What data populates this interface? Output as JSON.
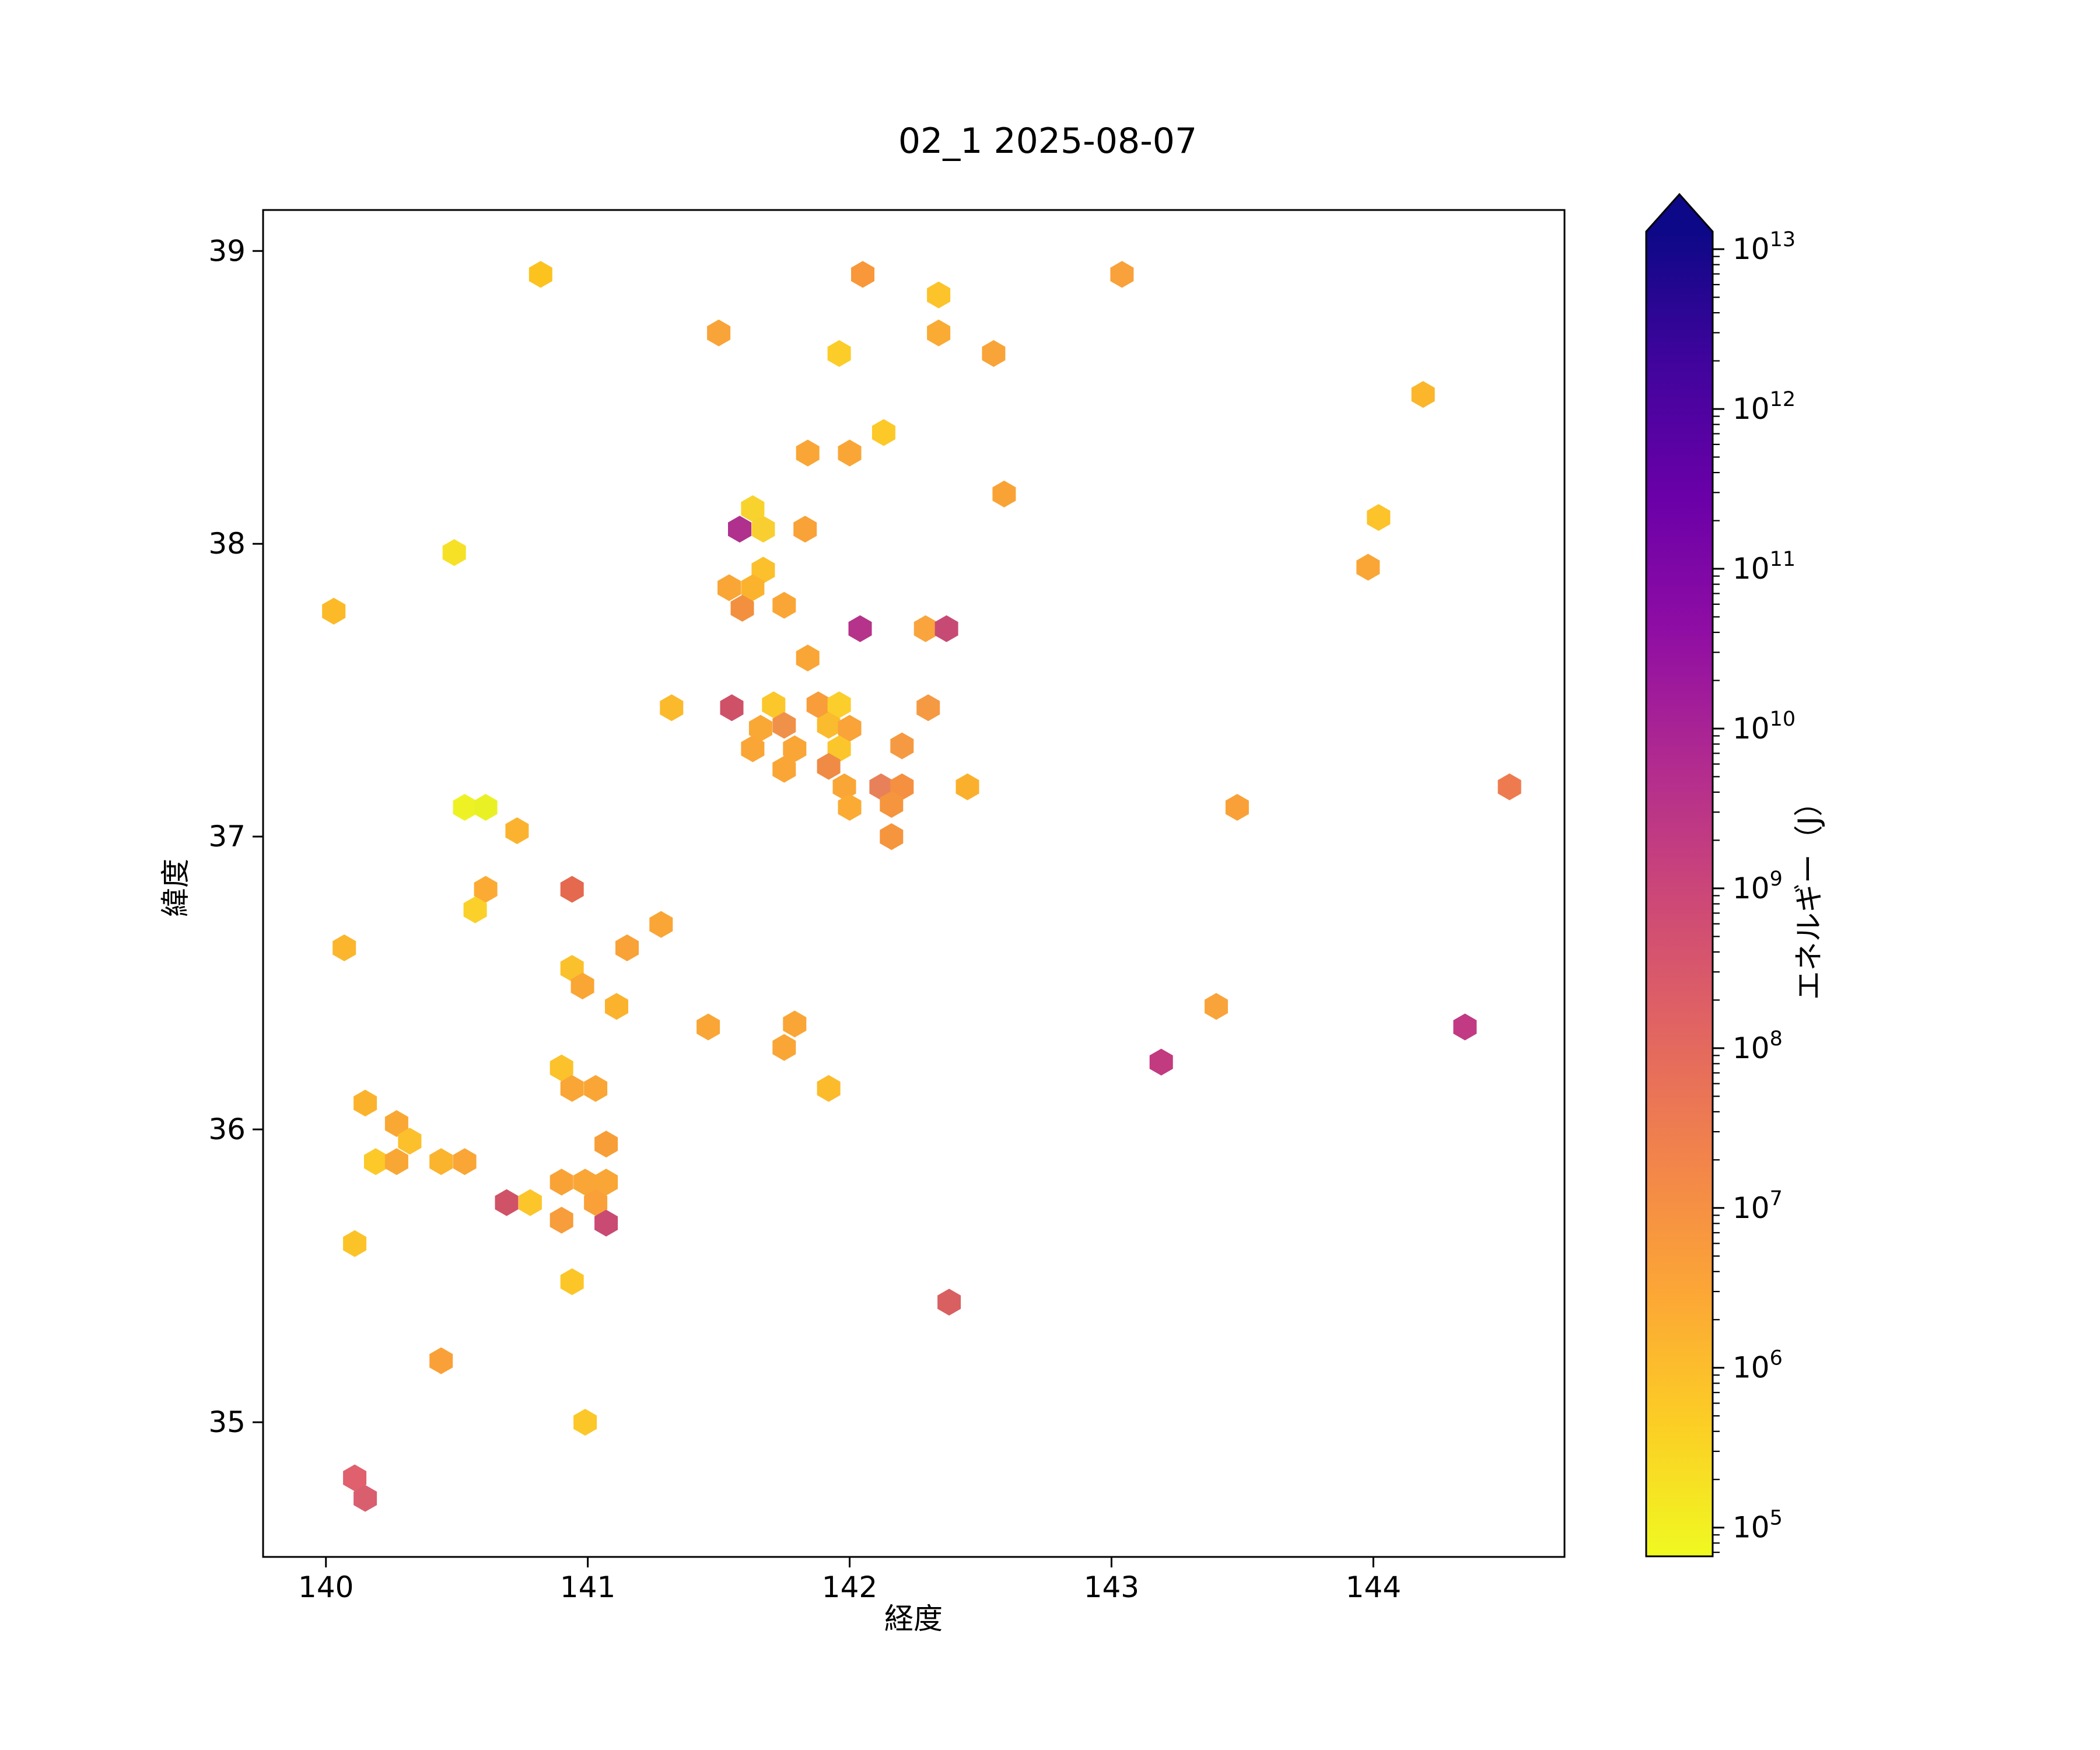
{
  "title": "02_1 2025-08-07",
  "chart_data": {
    "type": "scatter",
    "marker": "hexagon",
    "title": "02_1 2025-08-07",
    "xlabel": "経度",
    "ylabel": "緯度",
    "xlim": [
      139.76,
      144.73
    ],
    "ylim": [
      34.54,
      39.14
    ],
    "xticks": [
      140,
      141,
      142,
      143,
      144
    ],
    "yticks": [
      35,
      36,
      37,
      38,
      39
    ],
    "grid": false,
    "legend_position": "right-colorbar",
    "colorbar": {
      "label": "エネルギー（J）",
      "scale": "log",
      "tick_labels": [
        "10^13",
        "10^12",
        "10^11",
        "10^10",
        "10^9",
        "10^8",
        "10^7",
        "10^6",
        "10^5"
      ],
      "tick_exponents": [
        13,
        12,
        11,
        10,
        9,
        8,
        7,
        6,
        5
      ],
      "edge_exponents": [
        4.82,
        13.11
      ],
      "extend": "max",
      "colormap": "plasma_r",
      "gradient_stops_top_to_bottom": [
        "#0d0887",
        "#41049d",
        "#6a00a8",
        "#8f0da4",
        "#b12a90",
        "#cc4778",
        "#e16462",
        "#f2844b",
        "#fca636",
        "#fcce25",
        "#f0f921"
      ],
      "over_color": "#0d0887"
    },
    "point_format": [
      "lon",
      "lat",
      "color",
      "energy_J_estimate"
    ],
    "points": [
      [
        140.82,
        38.92,
        "#fcc21e",
        600000
      ],
      [
        140.49,
        37.97,
        "#f6e126",
        200000
      ],
      [
        140.03,
        37.77,
        "#fcba28",
        900000
      ],
      [
        142.05,
        38.92,
        "#f8983a",
        4000000
      ],
      [
        142.34,
        38.85,
        "#fcc32a",
        600000
      ],
      [
        141.5,
        38.72,
        "#f9a438",
        2500000
      ],
      [
        142.34,
        38.72,
        "#faab34",
        1600000
      ],
      [
        141.96,
        38.65,
        "#fccd28",
        400000
      ],
      [
        142.55,
        38.65,
        "#f9a438",
        2500000
      ],
      [
        143.04,
        38.92,
        "#f9a13a",
        3000000
      ],
      [
        142.13,
        38.38,
        "#fcc928",
        500000
      ],
      [
        141.84,
        38.31,
        "#f9a636",
        2500000
      ],
      [
        142.0,
        38.31,
        "#f9a636",
        2500000
      ],
      [
        142.59,
        38.17,
        "#f9a337",
        3000000
      ],
      [
        141.63,
        38.12,
        "#f8d32e",
        350000
      ],
      [
        141.58,
        38.05,
        "#b0308e",
        5000000000
      ],
      [
        141.67,
        38.05,
        "#f9ce30",
        400000
      ],
      [
        141.83,
        38.05,
        "#f9a237",
        3000000
      ],
      [
        141.67,
        37.91,
        "#fbc02c",
        700000
      ],
      [
        141.54,
        37.85,
        "#f9a636",
        2500000
      ],
      [
        141.63,
        37.85,
        "#fbb32e",
        1200000
      ],
      [
        141.59,
        37.78,
        "#f2903f",
        8000000
      ],
      [
        141.75,
        37.79,
        "#faa636",
        2500000
      ],
      [
        142.04,
        37.71,
        "#b5338a",
        3000000000
      ],
      [
        142.29,
        37.71,
        "#f9a43c",
        2500000
      ],
      [
        142.37,
        37.71,
        "#c74a75",
        700000000
      ],
      [
        141.84,
        37.61,
        "#f9a636",
        2500000
      ],
      [
        141.55,
        37.44,
        "#cf5168",
        300000000
      ],
      [
        141.71,
        37.45,
        "#fcc72a",
        500000
      ],
      [
        141.88,
        37.45,
        "#f89d39",
        3500000
      ],
      [
        141.96,
        37.45,
        "#fcce2b",
        400000
      ],
      [
        141.66,
        37.37,
        "#f9a835",
        2000000
      ],
      [
        141.75,
        37.38,
        "#f0914a",
        8000000
      ],
      [
        141.92,
        37.38,
        "#fbbb2e",
        800000
      ],
      [
        142.0,
        37.37,
        "#f9a338",
        3000000
      ],
      [
        142.3,
        37.44,
        "#f59a42",
        4000000
      ],
      [
        141.63,
        37.3,
        "#f9a636",
        2500000
      ],
      [
        141.79,
        37.3,
        "#f9a636",
        2500000
      ],
      [
        141.96,
        37.3,
        "#fbc62b",
        600000
      ],
      [
        142.2,
        37.31,
        "#f59a42",
        4000000
      ],
      [
        141.75,
        37.23,
        "#f9a636",
        2500000
      ],
      [
        141.92,
        37.24,
        "#ef8b44",
        10000000
      ],
      [
        141.98,
        37.17,
        "#f9a636",
        2500000
      ],
      [
        142.12,
        37.17,
        "#e8805a",
        30000000
      ],
      [
        142.2,
        37.17,
        "#f59040",
        6000000
      ],
      [
        142.45,
        37.17,
        "#fbb02d",
        1400000
      ],
      [
        142.0,
        37.1,
        "#fbab33",
        1600000
      ],
      [
        142.16,
        37.11,
        "#f5953d",
        5000000
      ],
      [
        142.16,
        37.0,
        "#f5953d",
        5000000
      ],
      [
        141.46,
        36.35,
        "#f9a636",
        2500000
      ],
      [
        141.79,
        36.36,
        "#f9a636",
        2500000
      ],
      [
        141.75,
        36.28,
        "#f9a636",
        2500000
      ],
      [
        141.92,
        36.14,
        "#fbbb2b",
        800000
      ],
      [
        142.38,
        35.41,
        "#d96060",
        150000000
      ],
      [
        143.48,
        37.1,
        "#f9a138",
        3000000
      ],
      [
        144.52,
        37.17,
        "#ee7b4f",
        25000000
      ],
      [
        143.4,
        36.42,
        "#f9a43a",
        2500000
      ],
      [
        144.35,
        36.35,
        "#c13a83",
        1500000000
      ],
      [
        143.19,
        36.23,
        "#c23a80",
        1500000000
      ],
      [
        144.19,
        38.51,
        "#fbb62c",
        1000000
      ],
      [
        144.02,
        38.09,
        "#fcc32a",
        600000
      ],
      [
        143.98,
        37.92,
        "#f9a636",
        2500000
      ],
      [
        141.32,
        37.44,
        "#fbba2c",
        850000
      ],
      [
        140.53,
        37.1,
        "#eef225",
        100000
      ],
      [
        140.61,
        37.1,
        "#e9f125",
        90000
      ],
      [
        140.73,
        37.02,
        "#fbb32f",
        1200000
      ],
      [
        140.61,
        36.82,
        "#fbab33",
        1600000
      ],
      [
        140.57,
        36.75,
        "#fbd02b",
        400000
      ],
      [
        140.94,
        36.82,
        "#e4694e",
        70000000
      ],
      [
        141.28,
        36.7,
        "#f9a636",
        2500000
      ],
      [
        141.15,
        36.62,
        "#f9a237",
        3000000
      ],
      [
        140.07,
        36.62,
        "#fbb62d",
        1000000
      ],
      [
        140.94,
        36.55,
        "#fbc12c",
        700000
      ],
      [
        140.98,
        36.49,
        "#faa635",
        2500000
      ],
      [
        141.11,
        36.42,
        "#fbb32e",
        1200000
      ],
      [
        140.9,
        36.21,
        "#fbc22b",
        600000
      ],
      [
        140.94,
        36.14,
        "#f9a636",
        2500000
      ],
      [
        141.03,
        36.14,
        "#f9a636",
        2500000
      ],
      [
        140.15,
        36.09,
        "#fbb32e",
        1200000
      ],
      [
        140.27,
        36.02,
        "#faa834",
        2000000
      ],
      [
        140.32,
        35.96,
        "#fbc02c",
        700000
      ],
      [
        140.19,
        35.89,
        "#fcc929",
        500000
      ],
      [
        140.27,
        35.89,
        "#f9a734",
        2500000
      ],
      [
        140.44,
        35.89,
        "#fbb42e",
        1200000
      ],
      [
        140.53,
        35.89,
        "#f9a636",
        2500000
      ],
      [
        141.07,
        35.95,
        "#f89e38",
        3500000
      ],
      [
        140.9,
        35.82,
        "#f9a337",
        3000000
      ],
      [
        140.99,
        35.82,
        "#f9a636",
        2500000
      ],
      [
        141.07,
        35.82,
        "#f9a636",
        2500000
      ],
      [
        140.69,
        35.75,
        "#d05267",
        300000000
      ],
      [
        140.78,
        35.75,
        "#fcc52a",
        550000
      ],
      [
        141.03,
        35.75,
        "#f9a138",
        3000000
      ],
      [
        140.9,
        35.69,
        "#f79d3b",
        3500000
      ],
      [
        141.07,
        35.68,
        "#c94a72",
        600000000
      ],
      [
        140.11,
        35.61,
        "#fcc329",
        600000
      ],
      [
        140.94,
        35.48,
        "#fcc628",
        500000
      ],
      [
        140.44,
        35.21,
        "#f9a138",
        3000000
      ],
      [
        140.99,
        35.0,
        "#fcc728",
        500000
      ],
      [
        140.11,
        34.81,
        "#e0606e",
        120000000
      ],
      [
        140.15,
        34.74,
        "#d95f6f",
        150000000
      ]
    ]
  }
}
